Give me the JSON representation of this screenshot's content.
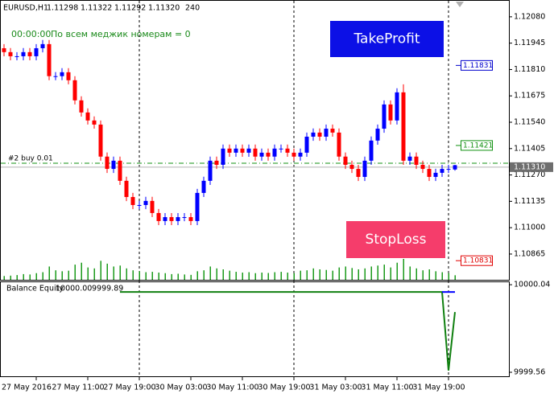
{
  "header": {
    "symbol": "EURUSD,H1",
    "quote": [
      1.11298,
      1.11322,
      1.11292,
      {
        "value": 1.1132,
        "label": "1.11320"
      }
    ],
    "volume": 240
  },
  "info": {
    "timer": "00:00:00",
    "text": "По всем меджик номерам  = 0"
  },
  "buttons": [
    "TakeProfit",
    "StopLoss"
  ],
  "chart_data": [
    {
      "type": "candlestick",
      "x": [
        -2,
        -1,
        0,
        1,
        2,
        3,
        4,
        5,
        6,
        7,
        8,
        9,
        10,
        11,
        12,
        13,
        14,
        15,
        16,
        17,
        18,
        19,
        20,
        21,
        22,
        23,
        24,
        25,
        26,
        27,
        28,
        29,
        30,
        31,
        32,
        33,
        34,
        35,
        36,
        37,
        38,
        39,
        40,
        41,
        42,
        43,
        44,
        45,
        46,
        47,
        48,
        49,
        50,
        51,
        52,
        53,
        54,
        55,
        56,
        57,
        58,
        59,
        60,
        61,
        62,
        63,
        64,
        65,
        66,
        67,
        68
      ],
      "open": [
        1.11919,
        1.11899,
        1.11878,
        1.11878,
        1.11899,
        1.11878,
        1.11919,
        1.1194,
        1.11776,
        1.11776,
        1.11796,
        1.11755,
        1.11652,
        1.1159,
        1.11549,
        1.11528,
        1.11364,
        1.11301,
        1.11343,
        1.1124,
        1.11157,
        1.11116,
        1.11116,
        1.11137,
        1.11075,
        1.11034,
        1.11054,
        1.11034,
        1.11054,
        1.11054,
        1.11034,
        1.11178,
        1.1124,
        1.11343,
        1.11322,
        1.11405,
        1.11384,
        1.11405,
        1.11384,
        1.11405,
        1.11364,
        1.11384,
        1.11364,
        1.11405,
        1.11405,
        1.11384,
        1.11364,
        1.11384,
        1.11466,
        1.11487,
        1.11466,
        1.11507,
        1.11487,
        1.11364,
        1.11322,
        1.11301,
        1.1126,
        1.11343,
        1.11446,
        1.11507,
        1.11631,
        1.11549,
        1.11693,
        1.11343,
        1.11364,
        1.11322,
        1.11301,
        1.1126,
        1.11281,
        1.11301,
        1.11298
      ],
      "high": [
        1.1194,
        1.1192,
        1.11899,
        1.1192,
        1.1192,
        1.1194,
        1.11961,
        1.11961,
        1.11797,
        1.11817,
        1.11817,
        1.11776,
        1.11673,
        1.11611,
        1.1157,
        1.11549,
        1.11385,
        1.11364,
        1.11364,
        1.11261,
        1.11178,
        1.11137,
        1.11158,
        1.11158,
        1.11096,
        1.11075,
        1.11075,
        1.11075,
        1.11075,
        1.11075,
        1.11199,
        1.11261,
        1.11364,
        1.11364,
        1.11426,
        1.11426,
        1.11426,
        1.11426,
        1.11426,
        1.11426,
        1.11405,
        1.11405,
        1.11426,
        1.11426,
        1.11426,
        1.11405,
        1.11405,
        1.11487,
        1.11508,
        1.11508,
        1.11528,
        1.11528,
        1.11508,
        1.11385,
        1.11343,
        1.11322,
        1.11364,
        1.11467,
        1.11528,
        1.11652,
        1.11652,
        1.11714,
        1.11734,
        1.11385,
        1.11385,
        1.11343,
        1.11322,
        1.11302,
        1.11322,
        1.11322,
        1.11322
      ],
      "low": [
        1.11878,
        1.11857,
        1.11857,
        1.11857,
        1.11857,
        1.11857,
        1.11898,
        1.11755,
        1.11755,
        1.11755,
        1.11734,
        1.11631,
        1.11569,
        1.11528,
        1.11507,
        1.11343,
        1.1128,
        1.1128,
        1.11219,
        1.11136,
        1.11095,
        1.11095,
        1.11095,
        1.11054,
        1.11013,
        1.11013,
        1.11013,
        1.11013,
        1.11033,
        1.11013,
        1.11013,
        1.11157,
        1.11219,
        1.11301,
        1.11301,
        1.11363,
        1.11363,
        1.11363,
        1.11363,
        1.11343,
        1.11343,
        1.11343,
        1.11343,
        1.11384,
        1.11363,
        1.11343,
        1.11343,
        1.11363,
        1.11445,
        1.11445,
        1.11445,
        1.11466,
        1.11343,
        1.11301,
        1.1128,
        1.11239,
        1.11239,
        1.11322,
        1.11425,
        1.11486,
        1.11528,
        1.11528,
        1.11322,
        1.11322,
        1.11301,
        1.1128,
        1.11239,
        1.11239,
        1.1126,
        1.1128,
        1.11292
      ],
      "close": [
        1.11899,
        1.11878,
        1.11878,
        1.11899,
        1.11878,
        1.11919,
        1.1194,
        1.11776,
        1.11776,
        1.11796,
        1.11755,
        1.11652,
        1.1159,
        1.11549,
        1.11528,
        1.11364,
        1.11301,
        1.11343,
        1.1124,
        1.11157,
        1.11116,
        1.11116,
        1.11137,
        1.11075,
        1.11034,
        1.11054,
        1.11034,
        1.11054,
        1.11054,
        1.11034,
        1.11178,
        1.1124,
        1.11343,
        1.11322,
        1.11405,
        1.11384,
        1.11405,
        1.11384,
        1.11405,
        1.11364,
        1.11384,
        1.11364,
        1.11405,
        1.11405,
        1.11384,
        1.11364,
        1.11384,
        1.11466,
        1.11487,
        1.11466,
        1.11507,
        1.11487,
        1.11364,
        1.11322,
        1.11301,
        1.1126,
        1.11343,
        1.11446,
        1.11507,
        1.11631,
        1.11549,
        1.11693,
        1.11343,
        1.11364,
        1.11322,
        1.11301,
        1.1126,
        1.11281,
        1.11301,
        1.11301,
        1.1132
      ],
      "volume": [
        200,
        220,
        250,
        300,
        280,
        350,
        400,
        700,
        500,
        450,
        480,
        800,
        900,
        650,
        600,
        1000,
        850,
        700,
        750,
        600,
        500,
        450,
        400,
        420,
        380,
        350,
        300,
        320,
        280,
        260,
        450,
        500,
        700,
        600,
        550,
        480,
        420,
        380,
        400,
        350,
        380,
        360,
        400,
        420,
        380,
        350,
        480,
        500,
        600,
        550,
        520,
        480,
        650,
        700,
        620,
        550,
        600,
        700,
        750,
        800,
        650,
        900,
        1100,
        700,
        600,
        500,
        550,
        450,
        400,
        350,
        240
      ],
      "up_color": "#0000ff",
      "down_color": "#ff0000",
      "volume_color": "#1a9a1a",
      "xlim": [
        -2.625,
        76.375
      ],
      "xticks": [
        {
          "value": 3,
          "label": "27 May 2016"
        },
        {
          "value": 11,
          "label": "27 May 11:00"
        },
        {
          "value": 19,
          "label": "27 May 19:00"
        },
        {
          "value": 27,
          "label": "30 May 03:00"
        },
        {
          "value": 35,
          "label": "30 May 11:00"
        },
        {
          "value": 43,
          "label": "30 May 19:00"
        },
        {
          "value": 51,
          "label": "31 May 03:00"
        },
        {
          "value": 59,
          "label": "31 May 11:00"
        },
        {
          "value": 67,
          "label": "31 May 19:00"
        }
      ],
      "vlines": [
        19,
        43,
        67
      ],
      "ylim": [
        1.10733,
        1.12166
      ],
      "yticks": [
        {
          "value": 1.1208,
          "label": "1.12080"
        },
        1.11945,
        {
          "value": 1.1181,
          "label": "1.11810"
        },
        1.11675,
        {
          "value": 1.1154,
          "label": "1.11540"
        },
        1.11405,
        {
          "value": 1.1127,
          "label": "1.11270"
        },
        1.11135,
        {
          "value": 1.11,
          "label": "1.11000"
        },
        1.10865
      ],
      "levels": [
        {
          "value": 1.11831,
          "color": "#0000cd"
        },
        {
          "value": 1.11421,
          "color": "#109010"
        },
        {
          "value": 1.10831,
          "color": "#e00000"
        }
      ],
      "order": {
        "label": "#2 buy 0.01",
        "value": 1.1133,
        "color": "#109010"
      },
      "bid": {
        "value": 1.1131,
        "label": "1.11310"
      }
    },
    {
      "type": "line",
      "title": "Balance Equity",
      "legend_values": [
        {
          "value": 10000,
          "label": "10000.00"
        },
        9999.89
      ],
      "series": [
        {
          "color": "#108010",
          "x": [
            16,
            66,
            67,
            68
          ],
          "values": [
            10000,
            10000,
            9999.57,
            9999.89
          ]
        },
        {
          "color": "#0000ff",
          "x": [
            66,
            68
          ],
          "values": [
            10000,
            10000
          ]
        }
      ],
      "xlim": [
        -2.625,
        76.375
      ],
      "ylim": [
        9999.538,
        10000.058
      ],
      "yticks": [
        10000.04,
        9999.56
      ]
    }
  ]
}
